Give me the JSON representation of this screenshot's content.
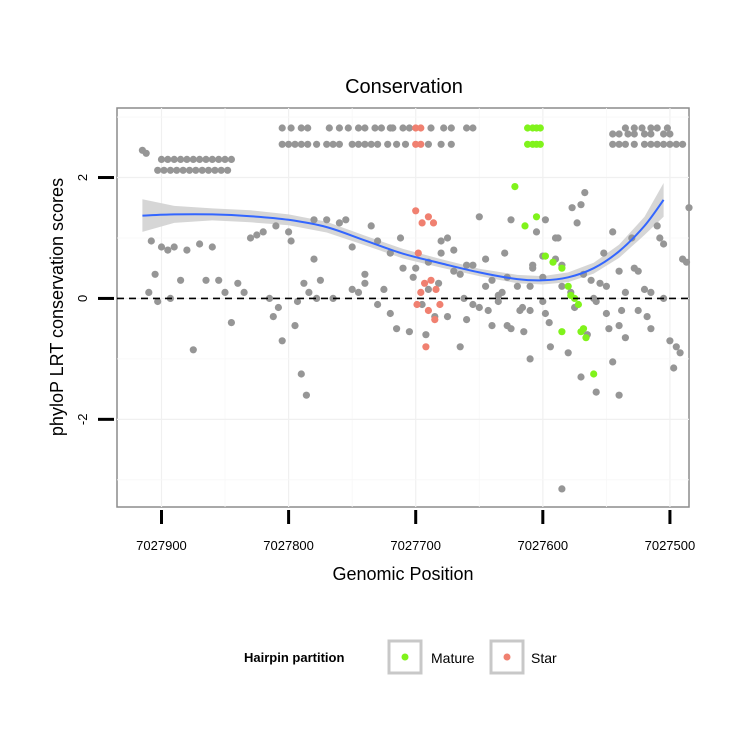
{
  "chart_data": {
    "type": "scatter",
    "title": "Conservation",
    "xlabel": "Genomic Position",
    "ylabel": "phyloP LRT conservation scores",
    "x_reversed": true,
    "xlim": [
      7027935,
      7027485
    ],
    "ylim": [
      -3.45,
      3.15
    ],
    "x_ticks": [
      {
        "value": 7027900,
        "label": "7027900"
      },
      {
        "value": 7027800,
        "label": "7027800"
      },
      {
        "value": 7027700,
        "label": "7027700"
      },
      {
        "value": 7027600,
        "label": "7027600"
      },
      {
        "value": 7027500,
        "label": "7027500"
      }
    ],
    "y_ticks": [
      {
        "value": -2,
        "label": "-2"
      },
      {
        "value": 0,
        "label": "0"
      },
      {
        "value": 2,
        "label": "2"
      }
    ],
    "reference_line": {
      "y": 0,
      "style": "dashed"
    },
    "grid": true,
    "legend": {
      "title": "Hairpin partition",
      "placement": "bottom",
      "entries": [
        {
          "name": "Mature",
          "color": "#80f31b"
        },
        {
          "name": "Star",
          "color": "#f08070"
        }
      ]
    },
    "smooth": {
      "color": "#3366ff",
      "band_color": "#d2d2d2",
      "x": [
        7027915,
        7027890,
        7027860,
        7027830,
        7027800,
        7027770,
        7027740,
        7027710,
        7027680,
        7027650,
        7027620,
        7027600,
        7027580,
        7027560,
        7027540,
        7027520,
        7027505
      ],
      "y": [
        1.37,
        1.39,
        1.39,
        1.36,
        1.3,
        1.18,
        0.96,
        0.74,
        0.58,
        0.43,
        0.32,
        0.3,
        0.35,
        0.5,
        0.78,
        1.2,
        1.63
      ],
      "lower": [
        1.1,
        1.25,
        1.29,
        1.26,
        1.21,
        1.09,
        0.88,
        0.66,
        0.51,
        0.37,
        0.25,
        0.23,
        0.27,
        0.41,
        0.67,
        1.05,
        1.35
      ],
      "upper": [
        1.64,
        1.53,
        1.49,
        1.46,
        1.39,
        1.27,
        1.04,
        0.82,
        0.65,
        0.49,
        0.39,
        0.37,
        0.43,
        0.59,
        0.89,
        1.35,
        1.91
      ]
    },
    "series": [
      {
        "group": "Other",
        "color": "#969696",
        "points": [
          [
            7027915,
            2.45
          ],
          [
            7027912,
            2.4
          ],
          [
            7027910,
            0.1
          ],
          [
            7027908,
            0.95
          ],
          [
            7027905,
            0.4
          ],
          [
            7027903,
            -0.05
          ],
          [
            7027900,
            0.85
          ],
          [
            7027895,
            0.8
          ],
          [
            7027893,
            0.0
          ],
          [
            7027890,
            0.85
          ],
          [
            7027885,
            0.3
          ],
          [
            7027880,
            0.8
          ],
          [
            7027875,
            -0.85
          ],
          [
            7027870,
            0.9
          ],
          [
            7027865,
            0.3
          ],
          [
            7027860,
            0.85
          ],
          [
            7027855,
            0.3
          ],
          [
            7027850,
            0.1
          ],
          [
            7027845,
            -0.4
          ],
          [
            7027840,
            0.25
          ],
          [
            7027835,
            0.1
          ],
          [
            7027830,
            1.0
          ],
          [
            7027825,
            1.05
          ],
          [
            7027820,
            1.1
          ],
          [
            7027815,
            0.0
          ],
          [
            7027812,
            -0.3
          ],
          [
            7027810,
            1.2
          ],
          [
            7027808,
            -0.15
          ],
          [
            7027805,
            -0.7
          ],
          [
            7027800,
            1.1
          ],
          [
            7027798,
            0.95
          ],
          [
            7027795,
            -0.45
          ],
          [
            7027793,
            -0.05
          ],
          [
            7027790,
            -1.25
          ],
          [
            7027788,
            0.25
          ],
          [
            7027786,
            -1.6
          ],
          [
            7027784,
            0.1
          ],
          [
            7027780,
            1.3
          ],
          [
            7027778,
            0.0
          ],
          [
            7027775,
            0.3
          ],
          [
            7027770,
            1.3
          ],
          [
            7027765,
            0.0
          ],
          [
            7027760,
            1.25
          ],
          [
            7027755,
            1.3
          ],
          [
            7027750,
            0.15
          ],
          [
            7027745,
            0.1
          ],
          [
            7027740,
            0.25
          ],
          [
            7027735,
            1.2
          ],
          [
            7027730,
            0.95
          ],
          [
            7027725,
            0.15
          ],
          [
            7027720,
            -0.25
          ],
          [
            7027715,
            -0.5
          ],
          [
            7027710,
            0.5
          ],
          [
            7027705,
            -0.55
          ],
          [
            7027700,
            0.5
          ],
          [
            7027695,
            -0.1
          ],
          [
            7027690,
            0.6
          ],
          [
            7027685,
            -0.3
          ],
          [
            7027680,
            0.95
          ],
          [
            7027675,
            1.0
          ],
          [
            7027670,
            0.8
          ],
          [
            7027665,
            -0.8
          ],
          [
            7027660,
            -0.35
          ],
          [
            7027655,
            0.55
          ],
          [
            7027650,
            1.35
          ],
          [
            7027645,
            0.65
          ],
          [
            7027640,
            0.3
          ],
          [
            7027635,
            -0.05
          ],
          [
            7027630,
            0.75
          ],
          [
            7027625,
            1.3
          ],
          [
            7027620,
            0.2
          ],
          [
            7027615,
            -0.55
          ],
          [
            7027610,
            -0.2
          ],
          [
            7027605,
            1.1
          ],
          [
            7027600,
            0.35
          ],
          [
            7027595,
            -0.4
          ],
          [
            7027590,
            0.65
          ],
          [
            7027585,
            0.2
          ],
          [
            7027580,
            -0.9
          ],
          [
            7027575,
            -0.15
          ],
          [
            7027570,
            -1.3
          ],
          [
            7027565,
            -0.6
          ],
          [
            7027560,
            0.0
          ],
          [
            7027555,
            0.25
          ],
          [
            7027550,
            -0.25
          ],
          [
            7027545,
            1.1
          ],
          [
            7027540,
            0.45
          ],
          [
            7027535,
            -0.65
          ],
          [
            7027530,
            1.0
          ],
          [
            7027525,
            -0.2
          ],
          [
            7027520,
            0.15
          ],
          [
            7027515,
            0.1
          ],
          [
            7027510,
            1.2
          ],
          [
            7027505,
            0.9
          ],
          [
            7027500,
            -0.7
          ],
          [
            7027495,
            -0.8
          ],
          [
            7027490,
            0.65
          ],
          [
            7027485,
            1.5
          ],
          [
            7027680,
            0.75
          ],
          [
            7027660,
            0.55
          ],
          [
            7027640,
            -0.45
          ],
          [
            7027625,
            -0.5
          ],
          [
            7027610,
            0.2
          ],
          [
            7027600,
            -0.05
          ],
          [
            7027585,
            0.55
          ],
          [
            7027573,
            1.25
          ],
          [
            7027562,
            0.3
          ],
          [
            7027552,
            0.75
          ],
          [
            7027548,
            -0.5
          ],
          [
            7027538,
            -0.2
          ],
          [
            7027528,
            0.5
          ],
          [
            7027518,
            -0.3
          ],
          [
            7027508,
            1.0
          ],
          [
            7027497,
            -1.15
          ],
          [
            7027492,
            -0.9
          ],
          [
            7027487,
            0.6
          ],
          [
            7027690,
            0.15
          ],
          [
            7027675,
            -0.3
          ],
          [
            7027665,
            0.4
          ],
          [
            7027655,
            -0.1
          ],
          [
            7027645,
            0.2
          ],
          [
            7027635,
            0.05
          ],
          [
            7027628,
            0.35
          ],
          [
            7027618,
            -0.2
          ],
          [
            7027608,
            0.5
          ],
          [
            7027598,
            -0.25
          ],
          [
            7027588,
            1.0
          ],
          [
            7027578,
            0.1
          ],
          [
            7027568,
            0.4
          ],
          [
            7027558,
            -0.05
          ],
          [
            7027545,
            -1.05
          ],
          [
            7027540,
            -0.45
          ],
          [
            7027535,
            0.1
          ],
          [
            7027525,
            0.45
          ],
          [
            7027515,
            -0.5
          ],
          [
            7027505,
            0.0
          ],
          [
            7027577,
            1.5
          ],
          [
            7027567,
            1.75
          ],
          [
            7027570,
            1.55
          ],
          [
            7027590,
            1.0
          ],
          [
            7027598,
            1.3
          ],
          [
            7027558,
            -1.55
          ],
          [
            7027540,
            -1.6
          ],
          [
            7027550,
            0.2
          ],
          [
            7027594,
            -0.8
          ],
          [
            7027585,
            -3.15
          ],
          [
            7027610,
            -1.0
          ],
          [
            7027628,
            -0.45
          ],
          [
            7027616,
            -0.15
          ],
          [
            7027600,
            0.7
          ],
          [
            7027608,
            0.55
          ],
          [
            7027780,
            0.65
          ],
          [
            7027750,
            0.85
          ],
          [
            7027740,
            0.4
          ],
          [
            7027730,
            -0.1
          ],
          [
            7027720,
            0.75
          ],
          [
            7027712,
            1.0
          ],
          [
            7027702,
            0.35
          ],
          [
            7027692,
            -0.6
          ],
          [
            7027682,
            0.25
          ],
          [
            7027670,
            0.45
          ],
          [
            7027662,
            0.0
          ],
          [
            7027650,
            -0.15
          ],
          [
            7027643,
            -0.2
          ],
          [
            7027632,
            0.1
          ]
        ],
        "rows": [
          {
            "y": 2.82,
            "x": [
              7027805,
              7027798,
              7027790,
              7027785,
              7027768,
              7027760,
              7027753,
              7027745,
              7027740,
              7027732,
              7027727,
              7027720,
              7027718,
              7027710,
              7027705,
              7027688,
              7027678,
              7027672,
              7027660,
              7027655,
              7027535,
              7027528,
              7027522,
              7027515,
              7027510,
              7027502
            ]
          },
          {
            "y": 2.72,
            "x": [
              7027545,
              7027540,
              7027533,
              7027528,
              7027520,
              7027515,
              7027505,
              7027500
            ]
          },
          {
            "y": 2.55,
            "x": [
              7027805,
              7027800,
              7027795,
              7027790,
              7027785,
              7027778,
              7027770,
              7027765,
              7027760,
              7027750,
              7027745,
              7027740,
              7027735,
              7027730,
              7027722,
              7027715,
              7027708,
              7027690,
              7027680,
              7027672,
              7027545,
              7027540,
              7027535,
              7027528,
              7027520,
              7027515,
              7027510,
              7027505,
              7027500,
              7027495,
              7027490
            ]
          },
          {
            "y": 2.3,
            "x": [
              7027900,
              7027895,
              7027890,
              7027885,
              7027880,
              7027875,
              7027870,
              7027865,
              7027860,
              7027855,
              7027850,
              7027845
            ]
          },
          {
            "y": 2.12,
            "x": [
              7027903,
              7027898,
              7027893,
              7027888,
              7027883,
              7027878,
              7027873,
              7027868,
              7027863,
              7027858,
              7027853,
              7027848
            ]
          }
        ]
      },
      {
        "group": "Mature",
        "color": "#80f31b",
        "points": [
          [
            7027622,
            1.85
          ],
          [
            7027614,
            1.2
          ],
          [
            7027605,
            1.35
          ],
          [
            7027598,
            0.7
          ],
          [
            7027592,
            0.6
          ],
          [
            7027585,
            0.5
          ],
          [
            7027580,
            0.2
          ],
          [
            7027578,
            0.05
          ],
          [
            7027575,
            0.0
          ],
          [
            7027572,
            -0.1
          ],
          [
            7027570,
            -0.55
          ],
          [
            7027568,
            -0.5
          ],
          [
            7027566,
            -0.65
          ],
          [
            7027560,
            -1.25
          ],
          [
            7027585,
            -0.55
          ]
        ],
        "rows": [
          {
            "y": 2.82,
            "x": [
              7027612,
              7027608,
              7027605,
              7027602
            ]
          },
          {
            "y": 2.55,
            "x": [
              7027612,
              7027608,
              7027605,
              7027602
            ]
          }
        ]
      },
      {
        "group": "Star",
        "color": "#f08070",
        "points": [
          [
            7027700,
            1.45
          ],
          [
            7027695,
            1.25
          ],
          [
            7027690,
            1.35
          ],
          [
            7027686,
            1.25
          ],
          [
            7027698,
            0.75
          ],
          [
            7027693,
            0.25
          ],
          [
            7027688,
            0.3
          ],
          [
            7027684,
            0.15
          ],
          [
            7027681,
            -0.1
          ],
          [
            7027696,
            0.1
          ],
          [
            7027699,
            -0.1
          ],
          [
            7027690,
            -0.2
          ],
          [
            7027685,
            -0.35
          ],
          [
            7027692,
            -0.8
          ]
        ],
        "rows": [
          {
            "y": 2.82,
            "x": [
              7027700,
              7027696
            ]
          },
          {
            "y": 2.55,
            "x": [
              7027700,
              7027696
            ]
          }
        ]
      }
    ]
  }
}
